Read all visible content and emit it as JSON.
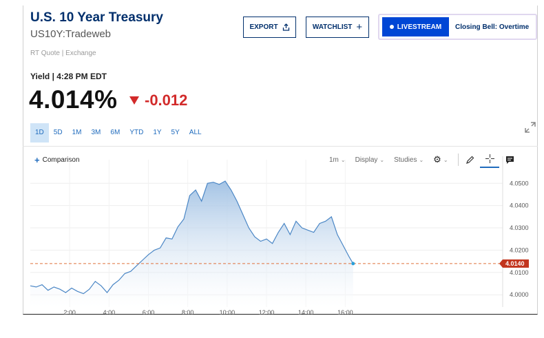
{
  "header": {
    "title": "U.S. 10 Year Treasury",
    "symbol": "US10Y:Tradeweb",
    "quote_source": "RT Quote | Exchange",
    "yield_time": "Yield | 4:28 PM EDT",
    "price": "4.014%",
    "change": "-0.012"
  },
  "actions": {
    "export_label": "EXPORT",
    "watchlist_label": "WATCHLIST",
    "livestream_label": "LIVESTREAM",
    "closing_bell_label": "Closing Bell: Overtime"
  },
  "ranges": [
    "1D",
    "5D",
    "1M",
    "3M",
    "6M",
    "YTD",
    "1Y",
    "5Y",
    "ALL"
  ],
  "active_range": "1D",
  "chart_toolbar": {
    "comparison_label": "Comparison",
    "interval_label": "1m",
    "display_label": "Display",
    "studies_label": "Studies"
  },
  "colors": {
    "brand": "#002f6c",
    "accent": "#1f6bbd",
    "negative": "#d22a2a",
    "livestream": "#0046d5",
    "line": "#4a86c5"
  },
  "chart_data": {
    "type": "area",
    "x_tick_labels": [
      "2:00",
      "4:00",
      "6:00",
      "8:00",
      "10:00",
      "12:00",
      "14:00",
      "16:00"
    ],
    "x_ticks_hours": [
      2,
      4,
      6,
      8,
      10,
      12,
      14,
      16
    ],
    "y_tick_labels": [
      "4.0000",
      "4.0100",
      "4.0200",
      "4.0300",
      "4.0400",
      "4.0500"
    ],
    "y_ticks": [
      4.0,
      4.01,
      4.02,
      4.03,
      4.04,
      4.05
    ],
    "xlim_hours": [
      0,
      24
    ],
    "ylim": [
      3.9945,
      4.0575
    ],
    "last_value": 4.014,
    "last_value_label": "4.0140",
    "series": [
      {
        "x_hours": [
          0,
          0.3,
          0.6,
          0.9,
          1.2,
          1.5,
          1.8,
          2.1,
          2.4,
          2.7,
          3.0,
          3.3,
          3.6,
          3.9,
          4.2,
          4.5,
          4.8,
          5.1,
          5.4,
          5.7,
          6.0,
          6.3,
          6.6,
          6.9,
          7.2,
          7.5,
          7.8,
          8.1,
          8.4,
          8.7,
          9.0,
          9.3,
          9.6,
          9.9,
          10.2,
          10.5,
          10.8,
          11.1,
          11.4,
          11.7,
          12.0,
          12.3,
          12.6,
          12.9,
          13.2,
          13.5,
          13.8,
          14.1,
          14.4,
          14.7,
          15.0,
          15.3,
          15.6,
          15.9,
          16.2,
          16.4
        ],
        "values": [
          4.004,
          4.0035,
          4.0045,
          4.002,
          4.0035,
          4.0025,
          4.001,
          4.003,
          4.0015,
          4.0005,
          4.0025,
          4.006,
          4.004,
          4.001,
          4.0045,
          4.0065,
          4.0095,
          4.0105,
          4.013,
          4.0155,
          4.018,
          4.02,
          4.021,
          4.0255,
          4.025,
          4.0305,
          4.034,
          4.0445,
          4.047,
          4.042,
          4.05,
          4.0505,
          4.0495,
          4.051,
          4.047,
          4.042,
          4.036,
          4.03,
          4.026,
          4.024,
          4.025,
          4.023,
          4.028,
          4.032,
          4.027,
          4.033,
          4.03,
          4.029,
          4.028,
          4.032,
          4.033,
          4.035,
          4.027,
          4.022,
          4.017,
          4.014
        ]
      }
    ]
  }
}
